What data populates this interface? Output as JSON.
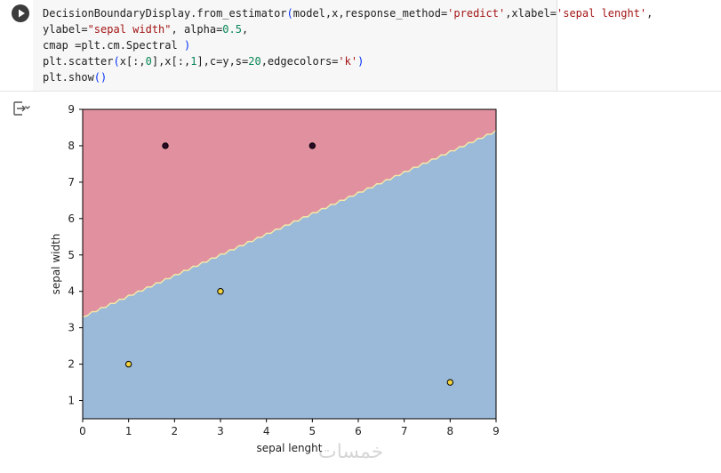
{
  "code_cell": {
    "lines": [
      [
        {
          "t": "DecisionBoundaryDisplay.from_estimator",
          "c": ""
        },
        {
          "t": "(",
          "c": "paren"
        },
        {
          "t": "model,x,response_method=",
          "c": ""
        },
        {
          "t": "'predict'",
          "c": "str"
        },
        {
          "t": ",xlabel=",
          "c": ""
        },
        {
          "t": "'sepal lenght'",
          "c": "str"
        },
        {
          "t": ",",
          "c": ""
        }
      ],
      [
        {
          "t": "ylabel=",
          "c": ""
        },
        {
          "t": "\"sepal width\"",
          "c": "str"
        },
        {
          "t": ", alpha=",
          "c": ""
        },
        {
          "t": "0.5",
          "c": "num"
        },
        {
          "t": ",",
          "c": ""
        }
      ],
      [
        {
          "t": "cmap =plt.cm.Spectral ",
          "c": ""
        },
        {
          "t": ")",
          "c": "paren"
        }
      ],
      [
        {
          "t": "plt.scatter",
          "c": ""
        },
        {
          "t": "(",
          "c": "paren"
        },
        {
          "t": "x[:,",
          "c": ""
        },
        {
          "t": "0",
          "c": "num"
        },
        {
          "t": "],x[:,",
          "c": ""
        },
        {
          "t": "1",
          "c": "num"
        },
        {
          "t": "],c=y,s=",
          "c": ""
        },
        {
          "t": "20",
          "c": "num"
        },
        {
          "t": ",edgecolors=",
          "c": ""
        },
        {
          "t": "'k'",
          "c": "str"
        },
        {
          "t": ")",
          "c": "paren"
        }
      ],
      [
        {
          "t": "plt.show",
          "c": ""
        },
        {
          "t": "()",
          "c": "paren"
        }
      ]
    ]
  },
  "chart_data": {
    "type": "scatter",
    "title": "",
    "xlabel": "sepal lenght",
    "ylabel": "sepal width",
    "xlim": [
      0,
      9
    ],
    "ylim": [
      0.5,
      9
    ],
    "xticks": [
      0,
      1,
      2,
      3,
      4,
      5,
      6,
      7,
      8,
      9
    ],
    "yticks": [
      1,
      2,
      3,
      4,
      5,
      6,
      7,
      8,
      9
    ],
    "decision_boundary": {
      "x": [
        0,
        9
      ],
      "y": [
        3.3,
        8.4
      ],
      "region_above_color": "#e1909f",
      "region_below_color": "#9bb9d8",
      "boundary_color": "#f3eaa6"
    },
    "series": [
      {
        "x": [
          1.8,
          5
        ],
        "y": [
          8,
          8
        ],
        "color": "#2b0a28"
      },
      {
        "x": [
          1,
          3,
          8
        ],
        "y": [
          2,
          4,
          1.5
        ],
        "color": "#f2d23e"
      }
    ]
  },
  "watermark": "خمسات"
}
